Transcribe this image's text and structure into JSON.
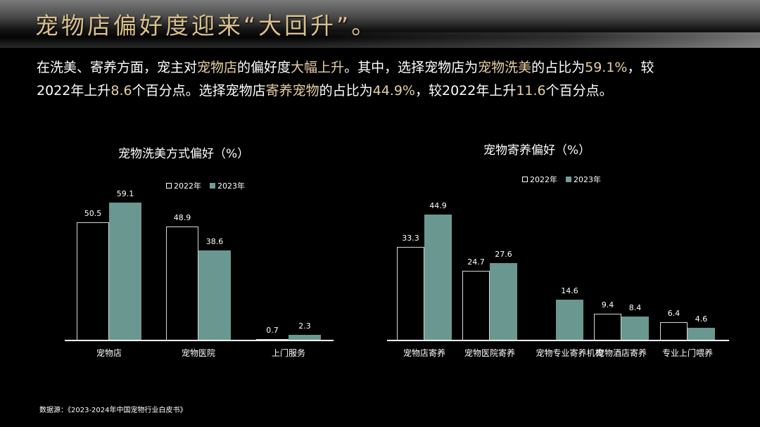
{
  "header": {
    "title": "宠物店偏好度迎来“大回升”。"
  },
  "summary": {
    "line1": [
      {
        "t": "在洗美、寄养方面，宠主对",
        "hl": false
      },
      {
        "t": "宠物店",
        "hl": true
      },
      {
        "t": "的偏好度",
        "hl": false
      },
      {
        "t": "大幅上升",
        "hl": true
      },
      {
        "t": "。其中，选择宠物店为",
        "hl": false
      },
      {
        "t": "宠物洗美",
        "hl": true
      },
      {
        "t": "的占比为",
        "hl": false
      },
      {
        "t": "59.1%",
        "hl": true
      },
      {
        "t": "，较",
        "hl": false
      }
    ],
    "line2": [
      {
        "t": "2022年上升",
        "hl": false
      },
      {
        "t": "8.6",
        "hl": true
      },
      {
        "t": "个百分点。选择宠物店",
        "hl": false
      },
      {
        "t": "寄养宠物",
        "hl": true
      },
      {
        "t": "的占比为",
        "hl": false
      },
      {
        "t": "44.9%",
        "hl": true
      },
      {
        "t": "，较2022年上升",
        "hl": false
      },
      {
        "t": "11.6",
        "hl": true
      },
      {
        "t": "个百分点。",
        "hl": false
      }
    ]
  },
  "colors": {
    "title_gold": "#d9bf8c",
    "highlight": "#e6cfa3",
    "series_2023": "#6a9890",
    "series_2022_outline": "#d8d8d8",
    "background": "#000000"
  },
  "chart_data": [
    {
      "type": "bar",
      "title": "宠物洗美方式偏好（%）",
      "xlabel": "",
      "ylabel": "",
      "legend": [
        "2022年",
        "2023年"
      ],
      "legend_position": "top",
      "grid": false,
      "categories": [
        "宠物店",
        "宠物医院",
        "上门服务"
      ],
      "series": [
        {
          "name": "2022年",
          "values": [
            50.5,
            48.9,
            0.7
          ]
        },
        {
          "name": "2023年",
          "values": [
            59.1,
            38.6,
            2.3
          ]
        }
      ],
      "ylim": [
        0,
        60
      ]
    },
    {
      "type": "bar",
      "title": "宠物寄养偏好（%）",
      "xlabel": "",
      "ylabel": "",
      "legend": [
        "2022年",
        "2023年"
      ],
      "legend_position": "top",
      "grid": false,
      "categories": [
        "宠物店寄养",
        "宠物医院寄养",
        "宠物专业寄养机构",
        "宠物酒店寄养",
        "专业上门喂养"
      ],
      "series": [
        {
          "name": "2022年",
          "values": [
            33.3,
            24.7,
            null,
            9.4,
            6.4
          ]
        },
        {
          "name": "2023年",
          "values": [
            44.9,
            27.6,
            14.6,
            8.4,
            4.6
          ]
        }
      ],
      "ylim": [
        0,
        45
      ]
    }
  ],
  "footer": {
    "source": "数据源：《2023-2024年中国宠物行业白皮书》"
  }
}
